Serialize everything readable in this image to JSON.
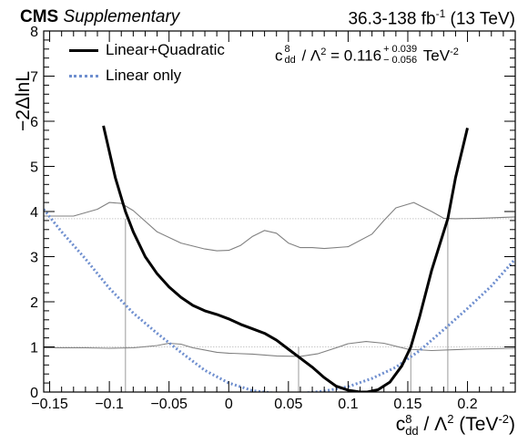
{
  "header": {
    "experiment": "CMS",
    "tag": "Supplementary",
    "lumi_prefix": "36.3-138 fb",
    "lumi_exp": "-1",
    "lumi_suffix": " (13 TeV)"
  },
  "axis": {
    "ylabel": "−2ΔlnL",
    "xlabel_main": "c",
    "xlabel_sup": "8",
    "xlabel_sub": "dd",
    "xlabel_rest": " / Λ",
    "xlabel_sq": "2",
    "xlabel_unit": " (TeV",
    "xlabel_unit_exp": "-2",
    "xlabel_close": ")"
  },
  "legend": {
    "quad_label": "Linear+Quadratic",
    "lin_label": "Linear only"
  },
  "result": {
    "sym": "c",
    "sup": "8",
    "sub": "dd",
    "rest": " / Λ",
    "sq": "2",
    "eq": " = 0.116",
    "up": "+ 0.039",
    "down": "− 0.056",
    "unit": " TeV",
    "unit_exp": "-2"
  },
  "colors": {
    "quad": "#000000",
    "linear": "#6f8fcf",
    "aux": "#808080",
    "threshold": "#c8c8c8"
  },
  "chart_data": {
    "type": "line",
    "xlim": [
      -0.155,
      0.24
    ],
    "ylim": [
      0,
      8
    ],
    "xticks": [
      -0.15,
      -0.1,
      -0.05,
      0,
      0.05,
      0.1,
      0.15,
      0.2
    ],
    "xtick_labels": [
      "−0.15",
      "−0.1",
      "−0.05",
      "0",
      "0.05",
      "0.1",
      "0.15",
      "0.2"
    ],
    "yticks": [
      0,
      1,
      2,
      3,
      4,
      5,
      6,
      7,
      8
    ],
    "ytick_labels": [
      "0",
      "1",
      "2",
      "3",
      "4",
      "5",
      "6",
      "7",
      "8"
    ],
    "thresholds": [
      1,
      3.84
    ],
    "interval_lines": [
      -0.0865,
      0.0585,
      0.1525,
      0.1835
    ],
    "series": [
      {
        "name": "Linear+Quadratic",
        "style": "solid",
        "x": [
          -0.105,
          -0.095,
          -0.0865,
          -0.08,
          -0.07,
          -0.06,
          -0.05,
          -0.04,
          -0.03,
          -0.02,
          -0.01,
          0,
          0.01,
          0.02,
          0.03,
          0.04,
          0.05,
          0.0585,
          0.07,
          0.08,
          0.09,
          0.1,
          0.11,
          0.116,
          0.125,
          0.135,
          0.145,
          0.1525,
          0.16,
          0.17,
          0.1835,
          0.19,
          0.2
        ],
        "y": [
          5.9,
          4.75,
          4.0,
          3.55,
          3.0,
          2.62,
          2.33,
          2.1,
          1.92,
          1.8,
          1.72,
          1.62,
          1.5,
          1.4,
          1.3,
          1.15,
          0.95,
          0.78,
          0.55,
          0.32,
          0.13,
          0.04,
          0.0,
          0.0,
          0.05,
          0.22,
          0.58,
          1.0,
          1.68,
          2.7,
          3.84,
          4.75,
          5.85
        ]
      },
      {
        "name": "Linear only",
        "style": "dotted",
        "x": [
          -0.155,
          -0.14,
          -0.12,
          -0.1,
          -0.08,
          -0.06,
          -0.04,
          -0.02,
          0,
          0.02,
          0.04,
          0.06,
          0.08,
          0.1,
          0.12,
          0.14,
          0.16,
          0.18,
          0.2,
          0.22,
          0.24
        ],
        "y": [
          4.05,
          3.55,
          2.95,
          2.3,
          1.75,
          1.3,
          0.88,
          0.48,
          0.2,
          0.03,
          -0.03,
          -0.03,
          0.02,
          0.12,
          0.3,
          0.55,
          0.92,
          1.38,
          1.85,
          2.35,
          2.95
        ]
      },
      {
        "name": "",
        "style": "thin",
        "x": [
          -0.155,
          -0.13,
          -0.11,
          -0.1,
          -0.09,
          -0.08,
          -0.06,
          -0.04,
          -0.02,
          -0.01,
          0,
          0.01,
          0.02,
          0.03,
          0.04,
          0.05,
          0.06,
          0.07,
          0.08,
          0.1,
          0.12,
          0.13,
          0.14,
          0.155,
          0.17,
          0.18,
          0.19,
          0.21,
          0.24
        ],
        "y": [
          3.9,
          3.9,
          4.05,
          4.2,
          4.18,
          4.02,
          3.55,
          3.3,
          3.17,
          3.13,
          3.14,
          3.25,
          3.45,
          3.58,
          3.52,
          3.3,
          3.2,
          3.2,
          3.18,
          3.22,
          3.5,
          3.8,
          4.08,
          4.2,
          4.0,
          3.85,
          3.84,
          3.85,
          3.88
        ]
      },
      {
        "name": "",
        "style": "thin",
        "x": [
          -0.155,
          -0.12,
          -0.1,
          -0.08,
          -0.06,
          -0.05,
          -0.04,
          -0.03,
          -0.01,
          0,
          0.02,
          0.04,
          0.06,
          0.075,
          0.09,
          0.1,
          0.115,
          0.13,
          0.15,
          0.17,
          0.2,
          0.24
        ],
        "y": [
          0.98,
          0.98,
          0.97,
          0.98,
          1.03,
          1.08,
          1.06,
          0.98,
          0.88,
          0.86,
          0.84,
          0.8,
          0.79,
          0.85,
          0.98,
          1.07,
          1.12,
          1.08,
          0.95,
          0.92,
          0.95,
          0.97
        ]
      }
    ]
  }
}
